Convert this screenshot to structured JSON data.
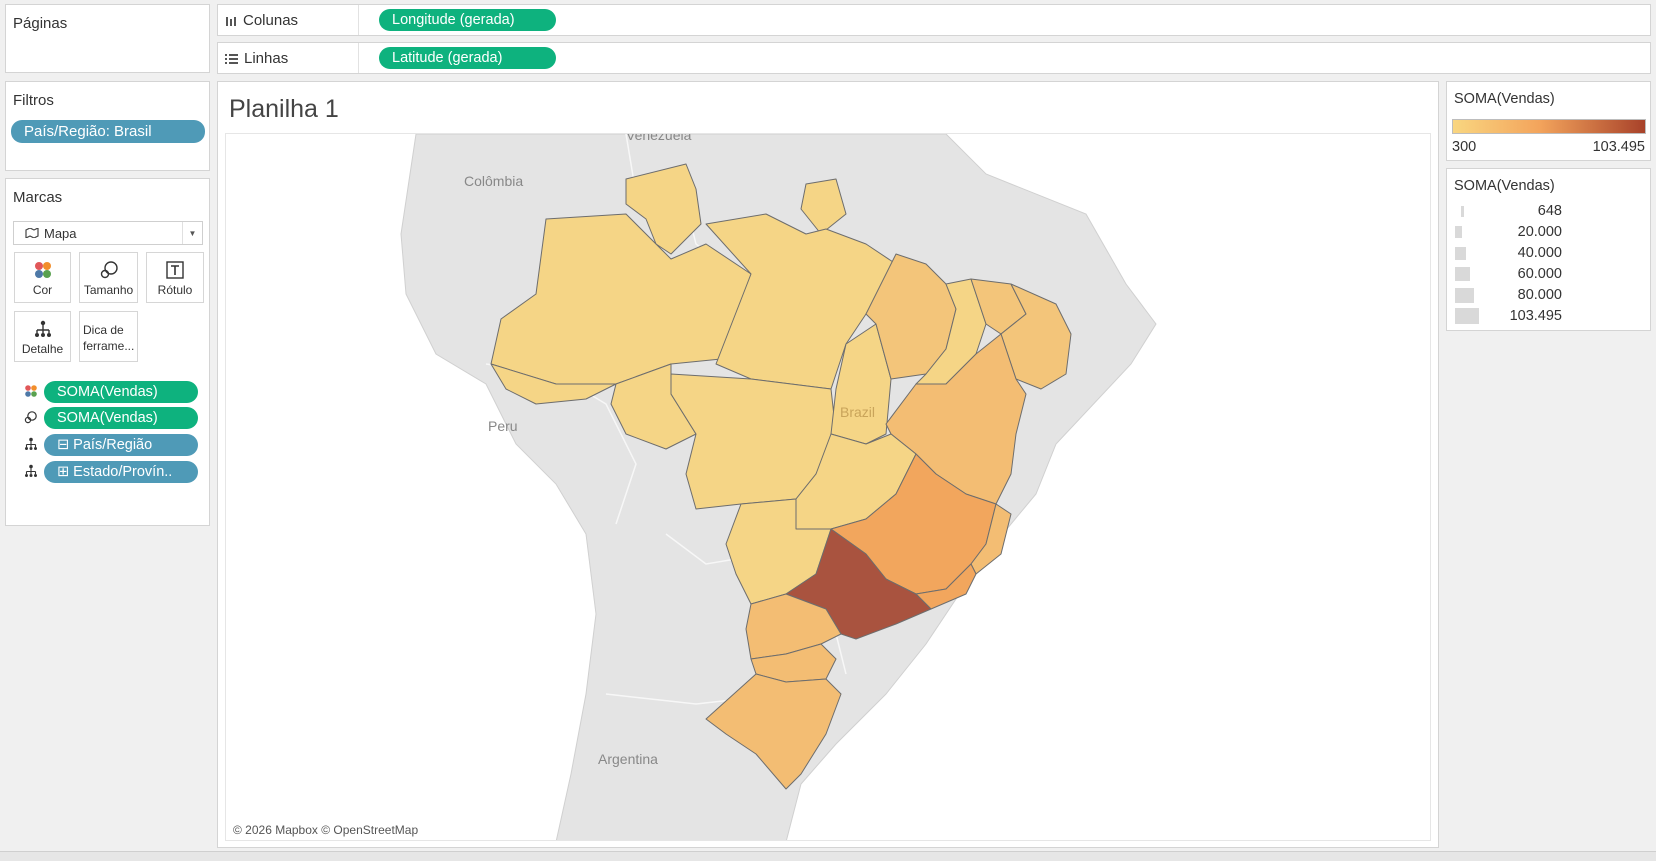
{
  "pages_panel": {
    "title": "Páginas"
  },
  "columns_shelf": {
    "label": "Colunas",
    "pill": "Longitude (gerada)"
  },
  "rows_shelf": {
    "label": "Linhas",
    "pill": "Latitude (gerada)"
  },
  "filters_panel": {
    "title": "Filtros",
    "filter_pill": "País/Região: Brasil"
  },
  "marks_panel": {
    "title": "Marcas",
    "mark_type": "Mapa",
    "cards": [
      {
        "label": "Cor",
        "icon": "color-dots-icon"
      },
      {
        "label": "Tamanho",
        "icon": "size-icon"
      },
      {
        "label": "Rótulo",
        "icon": "text-label-icon"
      },
      {
        "label": "Detalhe",
        "icon": "detail-icon"
      },
      {
        "label": "Dica de ferrame...",
        "icon": "tooltip-icon"
      }
    ],
    "fields": [
      {
        "label": "SOMA(Vendas)",
        "icon": "color-dots-icon",
        "color": "#0eb27e"
      },
      {
        "label": "SOMA(Vendas)",
        "icon": "size-icon",
        "color": "#0eb27e"
      },
      {
        "label": "⊟ País/Região",
        "icon": "detail-icon",
        "color": "#4f9ab7"
      },
      {
        "label": "⊞ Estado/Provín..",
        "icon": "detail-icon",
        "color": "#4f9ab7"
      }
    ]
  },
  "worksheet": {
    "title": "Planilha 1",
    "map_labels": {
      "venezuela": "Venezuela",
      "colombia": "Colômbia",
      "peru": "Peru",
      "brazil": "Brazil",
      "argentina": "Argentina"
    },
    "attribution": "© 2026 Mapbox © OpenStreetMap",
    "colors": {
      "low": "#f7d98a",
      "mid": "#f3a45c",
      "high": "#a9533f",
      "land": "#e4e4e4",
      "water": "#ffffff"
    }
  },
  "color_legend": {
    "title": "SOMA(Vendas)",
    "min": "300",
    "max": "103.495",
    "gradient_start": "#f9d680",
    "gradient_end": "#a8422a"
  },
  "size_legend": {
    "title": "SOMA(Vendas)",
    "items": [
      {
        "value": "648",
        "level": 0.006
      },
      {
        "value": "20.000",
        "level": 0.19
      },
      {
        "value": "40.000",
        "level": 0.39
      },
      {
        "value": "60.000",
        "level": 0.58
      },
      {
        "value": "80.000",
        "level": 0.77
      },
      {
        "value": "103.495",
        "level": 1.0
      }
    ]
  }
}
